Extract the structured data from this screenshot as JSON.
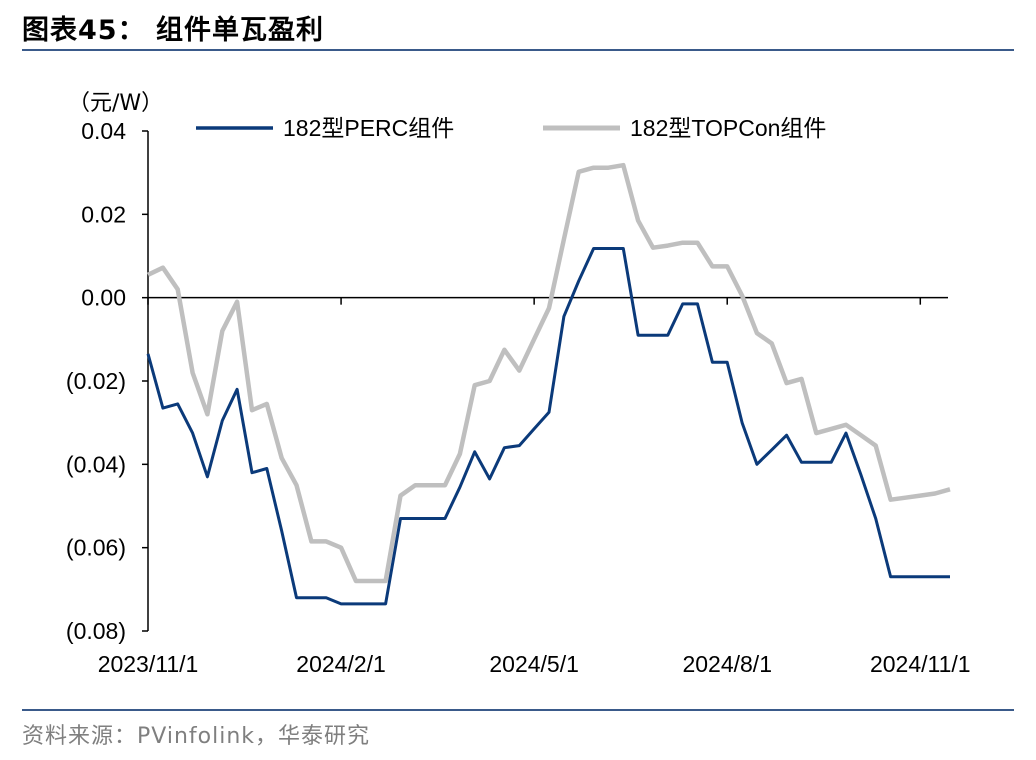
{
  "header": {
    "title": "图表45：  组件单瓦盈利"
  },
  "footer": {
    "source": "资料来源：PVinfolink，华泰研究"
  },
  "colors": {
    "rule": "#3a5a8a",
    "series_perc": "#0b3a7a",
    "series_topcon": "#bfbfbf"
  },
  "chart_data": {
    "type": "line",
    "title": "组件单瓦盈利",
    "unit_label": "（元/W）",
    "xlabel": "",
    "ylabel": "",
    "ylim": [
      -0.08,
      0.04
    ],
    "yticks": [
      0.04,
      0.02,
      0.0,
      -0.02,
      -0.04,
      -0.06,
      -0.08
    ],
    "ytick_labels": [
      "0.04",
      "0.02",
      "0.00",
      "(0.02)",
      "(0.04)",
      "(0.06)",
      "(0.08)"
    ],
    "xlim": [
      0,
      54
    ],
    "xtick_positions": [
      0,
      13,
      26,
      39,
      52
    ],
    "xtick_labels": [
      "2023/11/1",
      "2024/2/1",
      "2024/5/1",
      "2024/8/1",
      "2024/11/1"
    ],
    "legend_position": "top",
    "grid": false,
    "series": [
      {
        "name": "182型PERC组件",
        "color": "#0b3a7a",
        "values": [
          -0.0135,
          -0.0265,
          -0.0255,
          -0.0325,
          -0.043,
          -0.0295,
          -0.022,
          -0.042,
          -0.041,
          -0.056,
          -0.072,
          -0.072,
          -0.072,
          -0.0735,
          -0.0735,
          -0.0735,
          -0.0735,
          -0.053,
          -0.053,
          -0.053,
          -0.053,
          -0.0455,
          -0.037,
          -0.0435,
          -0.036,
          -0.0355,
          -0.0315,
          -0.0275,
          -0.0045,
          0.004,
          0.0118,
          0.0118,
          0.0118,
          -0.009,
          -0.009,
          -0.009,
          -0.0015,
          -0.0015,
          -0.0155,
          -0.0155,
          -0.03,
          -0.04,
          -0.0365,
          -0.033,
          -0.0395,
          -0.0395,
          -0.0395,
          -0.0325,
          -0.0425,
          -0.053,
          -0.067,
          -0.067,
          -0.067,
          -0.067,
          -0.067
        ]
      },
      {
        "name": "182型TOPCon组件",
        "color": "#bfbfbf",
        "values": [
          0.0055,
          0.0072,
          0.002,
          -0.018,
          -0.028,
          -0.008,
          -0.001,
          -0.027,
          -0.0255,
          -0.0385,
          -0.045,
          -0.0585,
          -0.0585,
          -0.06,
          -0.068,
          -0.068,
          -0.068,
          -0.0475,
          -0.045,
          -0.045,
          -0.045,
          -0.0375,
          -0.021,
          -0.02,
          -0.0125,
          -0.0175,
          -0.01,
          -0.0025,
          0.014,
          0.0302,
          0.0312,
          0.0312,
          0.0318,
          0.0185,
          0.012,
          0.0125,
          0.0132,
          0.0132,
          0.0075,
          0.0075,
          0.0005,
          -0.0085,
          -0.011,
          -0.0205,
          -0.0195,
          -0.0325,
          -0.0315,
          -0.0305,
          -0.033,
          -0.0355,
          -0.0485,
          -0.048,
          -0.0475,
          -0.047,
          -0.046
        ]
      }
    ]
  }
}
